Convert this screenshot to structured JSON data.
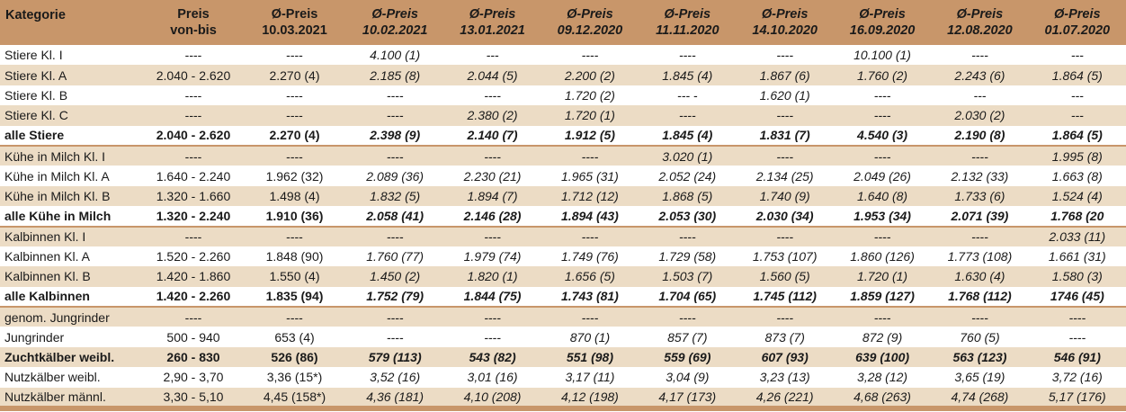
{
  "header": {
    "kategorie": "Kategorie",
    "preis_line1": "Preis",
    "preis_line2": "von-bis",
    "cols": [
      {
        "line1": "Ø-Preis",
        "line2": "10.03.2021"
      },
      {
        "line1": "Ø-Preis",
        "line2": "10.02.2021"
      },
      {
        "line1": "Ø-Preis",
        "line2": "13.01.2021"
      },
      {
        "line1": "Ø-Preis",
        "line2": "09.12.2020"
      },
      {
        "line1": "Ø-Preis",
        "line2": "11.11.2020"
      },
      {
        "line1": "Ø-Preis",
        "line2": "14.10.2020"
      },
      {
        "line1": "Ø-Preis",
        "line2": "16.09.2020"
      },
      {
        "line1": "Ø-Preis",
        "line2": "12.08.2020"
      },
      {
        "line1": "Ø-Preis",
        "line2": "01.07.2020"
      }
    ]
  },
  "rows": [
    {
      "k": "Stiere Kl. I",
      "v": [
        "----",
        "----",
        "4.100 (1)",
        "---",
        "----",
        "----",
        "----",
        "10.100 (1)",
        "----",
        "---"
      ]
    },
    {
      "k": "Stiere Kl. A",
      "v": [
        "2.040 - 2.620",
        "2.270 (4)",
        "2.185 (8)",
        "2.044 (5)",
        "2.200 (2)",
        "1.845 (4)",
        "1.867 (6)",
        "1.760 (2)",
        "2.243 (6)",
        "1.864 (5)"
      ]
    },
    {
      "k": "Stiere Kl. B",
      "v": [
        "----",
        "----",
        "----",
        "----",
        "1.720 (2)",
        "--- -",
        "1.620 (1)",
        "----",
        "---",
        "---"
      ]
    },
    {
      "k": "Stiere Kl. C",
      "v": [
        "----",
        "----",
        "----",
        "2.380 (2)",
        "1.720 (1)",
        "----",
        "----",
        "----",
        "2.030 (2)",
        "---"
      ]
    },
    {
      "k": "alle Stiere",
      "v": [
        "2.040 - 2.620",
        "2.270 (4)",
        "2.398 (9)",
        "2.140 (7)",
        "1.912 (5)",
        "1.845 (4)",
        "1.831 (7)",
        "4.540 (3)",
        "2.190 (8)",
        "1.864 (5)"
      ]
    },
    {
      "k": "Kühe in Milch Kl. I",
      "v": [
        "----",
        "----",
        "----",
        "----",
        "----",
        "3.020 (1)",
        "----",
        "----",
        "----",
        "1.995 (8)"
      ]
    },
    {
      "k": "Kühe in Milch Kl. A",
      "v": [
        "1.640 - 2.240",
        "1.962 (32)",
        "2.089 (36)",
        "2.230 (21)",
        "1.965 (31)",
        "2.052 (24)",
        "2.134 (25)",
        "2.049 (26)",
        "2.132 (33)",
        "1.663 (8)"
      ]
    },
    {
      "k": "Kühe in Milch Kl. B",
      "v": [
        "1.320 - 1.660",
        "1.498 (4)",
        "1.832 (5)",
        "1.894 (7)",
        "1.712 (12)",
        "1.868 (5)",
        "1.740 (9)",
        "1.640 (8)",
        "1.733 (6)",
        "1.524 (4)"
      ]
    },
    {
      "k": "alle Kühe in Milch",
      "v": [
        "1.320 - 2.240",
        "1.910 (36)",
        "2.058 (41)",
        "2.146 (28)",
        "1.894 (43)",
        "2.053 (30)",
        "2.030 (34)",
        "1.953 (34)",
        "2.071 (39)",
        "1.768 (20"
      ]
    },
    {
      "k": "Kalbinnen Kl. I",
      "v": [
        "----",
        "----",
        "----",
        "----",
        "----",
        "----",
        "----",
        "----",
        "----",
        "2.033 (11)"
      ]
    },
    {
      "k": "Kalbinnen Kl. A",
      "v": [
        "1.520 - 2.260",
        "1.848 (90)",
        "1.760 (77)",
        "1.979 (74)",
        "1.749 (76)",
        "1.729 (58)",
        "1.753 (107)",
        "1.860 (126)",
        "1.773 (108)",
        "1.661 (31)"
      ]
    },
    {
      "k": "Kalbinnen Kl. B",
      "v": [
        "1.420 - 1.860",
        "1.550 (4)",
        "1.450 (2)",
        "1.820 (1)",
        "1.656 (5)",
        "1.503 (7)",
        "1.560 (5)",
        "1.720 (1)",
        "1.630 (4)",
        "1.580 (3)"
      ]
    },
    {
      "k": "alle Kalbinnen",
      "v": [
        "1.420 - 2.260",
        "1.835 (94)",
        "1.752 (79)",
        "1.844 (75)",
        "1.743 (81)",
        "1.704 (65)",
        "1.745 (112)",
        "1.859 (127)",
        "1.768 (112)",
        "1746 (45)"
      ]
    },
    {
      "k": "genom. Jungrinder",
      "v": [
        "----",
        "----",
        "----",
        "----",
        "----",
        "----",
        "----",
        "----",
        "----",
        "----"
      ]
    },
    {
      "k": "Jungrinder",
      "v": [
        "500 - 940",
        "653 (4)",
        "----",
        "----",
        "870 (1)",
        "857 (7)",
        "873 (7)",
        "872 (9)",
        "760 (5)",
        "----"
      ]
    },
    {
      "k": "Zuchtkälber weibl.",
      "v": [
        "260 - 830",
        "526 (86)",
        "579 (113)",
        "543 (82)",
        "551 (98)",
        "559 (69)",
        "607 (93)",
        "639 (100)",
        "563 (123)",
        "546 (91)"
      ]
    },
    {
      "k": "Nutzkälber weibl.",
      "v": [
        "2,90 - 3,70",
        "3,36 (15*)",
        "3,52 (16)",
        "3,01 (16)",
        "3,17 (11)",
        "3,04  (9)",
        "3,23 (13)",
        "3,28 (12)",
        "3,65 (19)",
        "3,72 (16)"
      ]
    },
    {
      "k": "Nutzkälber männl.",
      "v": [
        "3,30 - 5,10",
        "4,45 (158*)",
        "4,36 (181)",
        "4,10 (208)",
        "4,12 (198)",
        "4,17 (173)",
        "4,26 (221)",
        "4,68 (263)",
        "4,74 (268)",
        "5,17 (176)"
      ]
    }
  ]
}
